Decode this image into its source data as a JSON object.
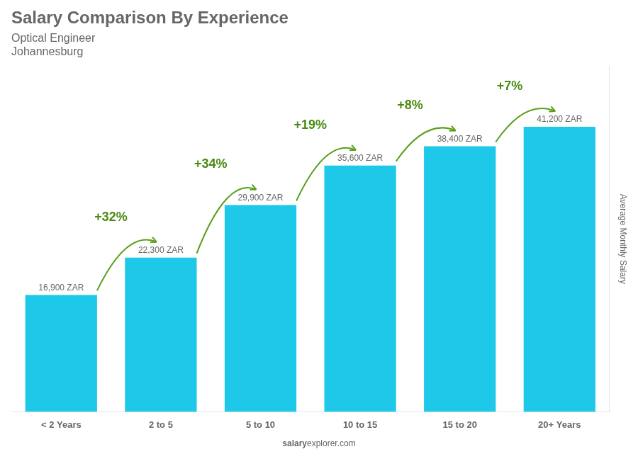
{
  "chart_data": {
    "type": "bar",
    "title": "Salary Comparison By Experience",
    "subtitle": [
      "Optical Engineer",
      "Johannesburg"
    ],
    "ylabel": "Average Monthly Salary",
    "source": [
      "salary",
      "explorer.com"
    ],
    "categories": [
      "< 2 Years",
      "2 to 5",
      "5 to 10",
      "10 to 15",
      "15 to 20",
      "20+ Years"
    ],
    "values": [
      16900,
      22300,
      29900,
      35600,
      38400,
      41200
    ],
    "value_labels": [
      "16,900 ZAR",
      "22,300 ZAR",
      "29,900 ZAR",
      "35,600 ZAR",
      "38,400 ZAR",
      "41,200 ZAR"
    ],
    "data_labels": true,
    "annotations": [
      {
        "text": "+32%",
        "from": "< 2 Years",
        "to": "2 to 5"
      },
      {
        "text": "+34%",
        "from": "2 to 5",
        "to": "5 to 10"
      },
      {
        "text": "+19%",
        "from": "5 to 10",
        "to": "10 to 15"
      },
      {
        "text": "+8%",
        "from": "10 to 15",
        "to": "15 to 20"
      },
      {
        "text": "+7%",
        "from": "15 to 20",
        "to": "20+ Years"
      }
    ],
    "color": "#1ec8e8",
    "ylim": [
      0,
      50000
    ],
    "tick_labels": "x",
    "grid": false
  }
}
